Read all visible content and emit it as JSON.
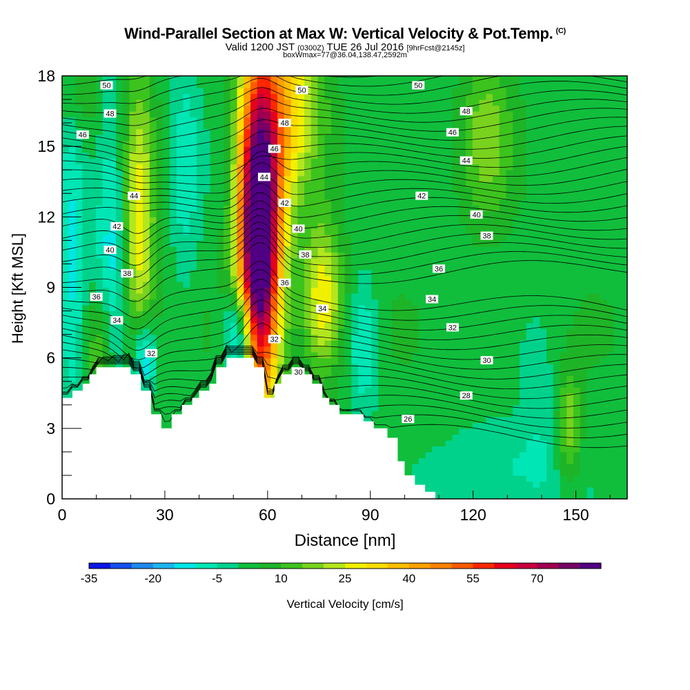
{
  "header": {
    "title": "Wind-Parallel Section at Max W: Vertical Velocity & Pot.Temp.",
    "copyright": "(C)",
    "valid_main": "Valid 1200 JST",
    "valid_utc": "(0300Z)",
    "valid_date": "TUE 26 Jul 2016",
    "forecast": "[9hrFcst@2145z]",
    "boxinfo": "boxWmax=77@36.04,138.47,2592m"
  },
  "chart_data": {
    "type": "heatmap",
    "xlabel": "Distance [nm]",
    "ylabel": "Height [Kft MSL]",
    "xlim": [
      0,
      165
    ],
    "ylim": [
      0,
      18
    ],
    "x_ticks": [
      0,
      30,
      60,
      90,
      120,
      150
    ],
    "y_ticks": [
      0,
      3,
      6,
      9,
      12,
      15,
      18
    ],
    "colorbar": {
      "label": "Vertical Velocity [cm/s]",
      "levels": [
        -35,
        -30,
        -25,
        -20,
        -15,
        -10,
        -5,
        0,
        5,
        10,
        15,
        20,
        25,
        30,
        35,
        40,
        45,
        50,
        55,
        60,
        65,
        70,
        75,
        80
      ],
      "tick_values": [
        -35,
        -20,
        -5,
        10,
        25,
        40,
        55,
        70
      ],
      "tick_labels": [
        "-35",
        "-20",
        "-5",
        "10",
        "25",
        "40",
        "55",
        "70"
      ],
      "colors": [
        "#0a14e6",
        "#1450f0",
        "#1e88ee",
        "#1eb4f0",
        "#00e6e6",
        "#00e6b4",
        "#00d28c",
        "#10be3c",
        "#1eb428",
        "#3cc31e",
        "#78d21e",
        "#b4e61e",
        "#f0f000",
        "#fadc00",
        "#ffbe00",
        "#ffa000",
        "#ff8200",
        "#ff5a00",
        "#ff2800",
        "#e6001e",
        "#c8003c",
        "#a00050",
        "#780064",
        "#500082"
      ]
    },
    "terrain_kft": [
      [
        0,
        4.3
      ],
      [
        3,
        4.3
      ],
      [
        3,
        4.6
      ],
      [
        6,
        4.6
      ],
      [
        6,
        4.9
      ],
      [
        8,
        4.9
      ],
      [
        8,
        5.3
      ],
      [
        10,
        5.3
      ],
      [
        10,
        5.6
      ],
      [
        20,
        5.6
      ],
      [
        20,
        5.3
      ],
      [
        23,
        5.3
      ],
      [
        23,
        4.6
      ],
      [
        26,
        4.6
      ],
      [
        26,
        3.6
      ],
      [
        29,
        3.6
      ],
      [
        29,
        3.0
      ],
      [
        32,
        3.0
      ],
      [
        32,
        3.6
      ],
      [
        35,
        3.6
      ],
      [
        35,
        4.0
      ],
      [
        38,
        4.0
      ],
      [
        38,
        4.3
      ],
      [
        40,
        4.3
      ],
      [
        40,
        4.6
      ],
      [
        43,
        4.6
      ],
      [
        43,
        4.9
      ],
      [
        45,
        4.9
      ],
      [
        45,
        5.6
      ],
      [
        48,
        5.6
      ],
      [
        48,
        6.0
      ],
      [
        56,
        6.0
      ],
      [
        56,
        5.6
      ],
      [
        59,
        5.6
      ],
      [
        59,
        4.3
      ],
      [
        62,
        4.3
      ],
      [
        62,
        4.9
      ],
      [
        64,
        4.9
      ],
      [
        64,
        5.3
      ],
      [
        67,
        5.3
      ],
      [
        67,
        5.6
      ],
      [
        70,
        5.6
      ],
      [
        70,
        5.3
      ],
      [
        73,
        5.3
      ],
      [
        73,
        4.9
      ],
      [
        76,
        4.9
      ],
      [
        76,
        4.3
      ],
      [
        78,
        4.3
      ],
      [
        78,
        4.0
      ],
      [
        81,
        4.0
      ],
      [
        81,
        3.6
      ],
      [
        88,
        3.6
      ],
      [
        88,
        3.3
      ],
      [
        91,
        3.3
      ],
      [
        91,
        3.0
      ],
      [
        95,
        3.0
      ],
      [
        95,
        2.6
      ],
      [
        98,
        2.6
      ],
      [
        98,
        1.6
      ],
      [
        100,
        1.6
      ],
      [
        100,
        1.0
      ],
      [
        103,
        1.0
      ],
      [
        103,
        0.6
      ],
      [
        106,
        0.6
      ],
      [
        106,
        0.3
      ],
      [
        109,
        0.3
      ],
      [
        109,
        0
      ]
    ],
    "updrafts": [
      {
        "x": 57,
        "y": 11.0,
        "sx": 4,
        "sy": 4.8,
        "w": 80
      },
      {
        "x": 60,
        "y": 13.5,
        "sx": 5,
        "sy": 5.5,
        "w": 30
      },
      {
        "x": 68,
        "y": 17.0,
        "sx": 6,
        "sy": 2.5,
        "w": 22
      },
      {
        "x": 76,
        "y": 8.5,
        "sx": 4,
        "sy": 2.2,
        "w": 28
      },
      {
        "x": 22,
        "y": 11.5,
        "sx": 3.5,
        "sy": 4.5,
        "w": 28
      },
      {
        "x": 11,
        "y": 6.5,
        "sx": 3.5,
        "sy": 2,
        "w": 18
      },
      {
        "x": 148,
        "y": 3.0,
        "sx": 2.5,
        "sy": 1.6,
        "w": 18
      },
      {
        "x": 124,
        "y": 15.5,
        "sx": 5,
        "sy": 2.5,
        "w": 14
      },
      {
        "x": 5,
        "y": 17.5,
        "sx": 4,
        "sy": 1.5,
        "w": 10
      }
    ],
    "downdrafts": [
      {
        "x": 52,
        "y": 6.9,
        "sx": 3,
        "sy": 1.4,
        "w": -35
      },
      {
        "x": 15,
        "y": 10.5,
        "sx": 4,
        "sy": 5,
        "w": -18
      },
      {
        "x": 3,
        "y": 11,
        "sx": 3,
        "sy": 6,
        "w": -14
      },
      {
        "x": 24,
        "y": 6.0,
        "sx": 2.5,
        "sy": 1.2,
        "w": -24
      },
      {
        "x": 36,
        "y": 14.0,
        "sx": 3,
        "sy": 4,
        "w": -10
      },
      {
        "x": 88,
        "y": 6.5,
        "sx": 3,
        "sy": 2,
        "w": -14
      },
      {
        "x": 128,
        "y": 1.2,
        "sx": 12,
        "sy": 1.5,
        "w": -10
      },
      {
        "x": 140,
        "y": 4.0,
        "sx": 4,
        "sy": 3,
        "w": -5
      }
    ],
    "isentrope_labels": [
      {
        "text": "50",
        "x": 13,
        "y": 17.6
      },
      {
        "text": "50",
        "x": 70,
        "y": 17.4
      },
      {
        "text": "50",
        "x": 104,
        "y": 17.6
      },
      {
        "text": "48",
        "x": 14,
        "y": 16.4
      },
      {
        "text": "48",
        "x": 65,
        "y": 16.0
      },
      {
        "text": "48",
        "x": 118,
        "y": 16.5
      },
      {
        "text": "46",
        "x": 6,
        "y": 15.5
      },
      {
        "text": "46",
        "x": 62,
        "y": 14.9
      },
      {
        "text": "46",
        "x": 114,
        "y": 15.6
      },
      {
        "text": "44",
        "x": 21,
        "y": 12.9
      },
      {
        "text": "44",
        "x": 59,
        "y": 13.7
      },
      {
        "text": "44",
        "x": 118,
        "y": 14.4
      },
      {
        "text": "42",
        "x": 16,
        "y": 11.6
      },
      {
        "text": "42",
        "x": 65,
        "y": 12.6
      },
      {
        "text": "42",
        "x": 105,
        "y": 12.9
      },
      {
        "text": "40",
        "x": 14,
        "y": 10.6
      },
      {
        "text": "40",
        "x": 69,
        "y": 11.5
      },
      {
        "text": "40",
        "x": 121,
        "y": 12.1
      },
      {
        "text": "38",
        "x": 19,
        "y": 9.6
      },
      {
        "text": "38",
        "x": 71,
        "y": 10.4
      },
      {
        "text": "38",
        "x": 124,
        "y": 11.2
      },
      {
        "text": "36",
        "x": 10,
        "y": 8.6
      },
      {
        "text": "36",
        "x": 65,
        "y": 9.2
      },
      {
        "text": "36",
        "x": 110,
        "y": 9.8
      },
      {
        "text": "34",
        "x": 16,
        "y": 7.6
      },
      {
        "text": "34",
        "x": 76,
        "y": 8.1
      },
      {
        "text": "34",
        "x": 108,
        "y": 8.5
      },
      {
        "text": "32",
        "x": 26,
        "y": 6.2
      },
      {
        "text": "32",
        "x": 62,
        "y": 6.8
      },
      {
        "text": "32",
        "x": 114,
        "y": 7.3
      },
      {
        "text": "30",
        "x": 69,
        "y": 5.4
      },
      {
        "text": "30",
        "x": 124,
        "y": 5.9
      },
      {
        "text": "28",
        "x": 118,
        "y": 4.4
      },
      {
        "text": "26",
        "x": 101,
        "y": 3.4
      }
    ]
  }
}
